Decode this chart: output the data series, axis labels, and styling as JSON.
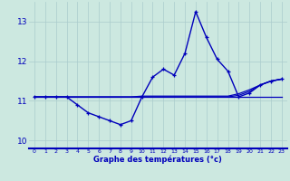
{
  "title": "",
  "xlabel": "Graphe des températures (°c)",
  "ylabel": "",
  "background_color": "#cce8e0",
  "grid_color": "#aacccc",
  "line_color": "#0000bb",
  "x": [
    0,
    1,
    2,
    3,
    4,
    5,
    6,
    7,
    8,
    9,
    10,
    11,
    12,
    13,
    14,
    15,
    16,
    17,
    18,
    19,
    20,
    21,
    22,
    23
  ],
  "y_main": [
    11.1,
    11.1,
    11.1,
    11.1,
    10.9,
    10.7,
    10.6,
    10.5,
    10.4,
    10.5,
    11.1,
    11.6,
    11.8,
    11.65,
    12.2,
    13.25,
    12.6,
    12.05,
    11.75,
    11.1,
    11.2,
    11.4,
    11.5,
    11.55
  ],
  "y_flat1": [
    11.1,
    11.1,
    11.1,
    11.1,
    11.1,
    11.1,
    11.1,
    11.1,
    11.1,
    11.1,
    11.1,
    11.1,
    11.1,
    11.1,
    11.1,
    11.1,
    11.1,
    11.1,
    11.1,
    11.1,
    11.1,
    11.1,
    11.1,
    11.1
  ],
  "y_flat2": [
    11.1,
    11.1,
    11.1,
    11.1,
    11.1,
    11.1,
    11.1,
    11.1,
    11.1,
    11.1,
    11.12,
    11.12,
    11.12,
    11.12,
    11.12,
    11.12,
    11.12,
    11.12,
    11.12,
    11.18,
    11.28,
    11.4,
    11.5,
    11.55
  ],
  "y_flat3": [
    11.1,
    11.1,
    11.1,
    11.1,
    11.1,
    11.1,
    11.1,
    11.1,
    11.1,
    11.1,
    11.1,
    11.1,
    11.1,
    11.1,
    11.1,
    11.1,
    11.1,
    11.1,
    11.1,
    11.14,
    11.24,
    11.4,
    11.5,
    11.55
  ],
  "ylim": [
    9.8,
    13.5
  ],
  "xlim": [
    -0.5,
    23.5
  ],
  "yticks": [
    10,
    11,
    12,
    13
  ],
  "xticks": [
    0,
    1,
    2,
    3,
    4,
    5,
    6,
    7,
    8,
    9,
    10,
    11,
    12,
    13,
    14,
    15,
    16,
    17,
    18,
    19,
    20,
    21,
    22,
    23
  ]
}
